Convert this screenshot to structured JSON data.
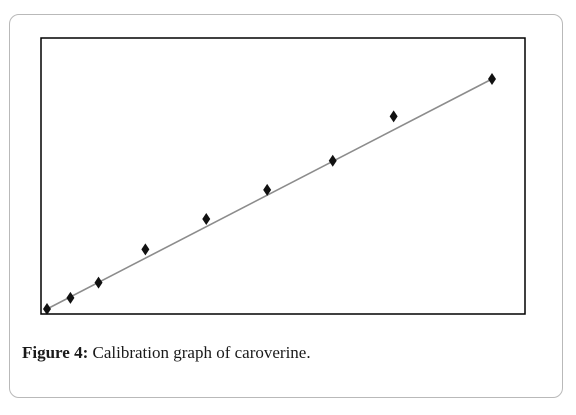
{
  "figure": {
    "label": "Figure 4:",
    "text": " Calibration graph of caroverine."
  },
  "chart_data": {
    "type": "scatter",
    "title": "",
    "xlabel": "",
    "ylabel": "",
    "xlim": [
      0,
      1
    ],
    "ylim": [
      0,
      1
    ],
    "grid": false,
    "colors": {
      "points": "#111111",
      "line": "#8c8c8c",
      "frame": "#000000"
    },
    "series": [
      {
        "x": [
          0.0,
          0.05,
          0.11,
          0.21,
          0.34,
          0.47,
          0.61,
          0.74,
          0.95
        ],
        "y": [
          0.0,
          0.04,
          0.095,
          0.215,
          0.325,
          0.43,
          0.535,
          0.695,
          0.83
        ]
      }
    ],
    "fit_line": {
      "x": [
        0.0,
        0.95
      ],
      "y": [
        0.0,
        0.83
      ]
    }
  }
}
